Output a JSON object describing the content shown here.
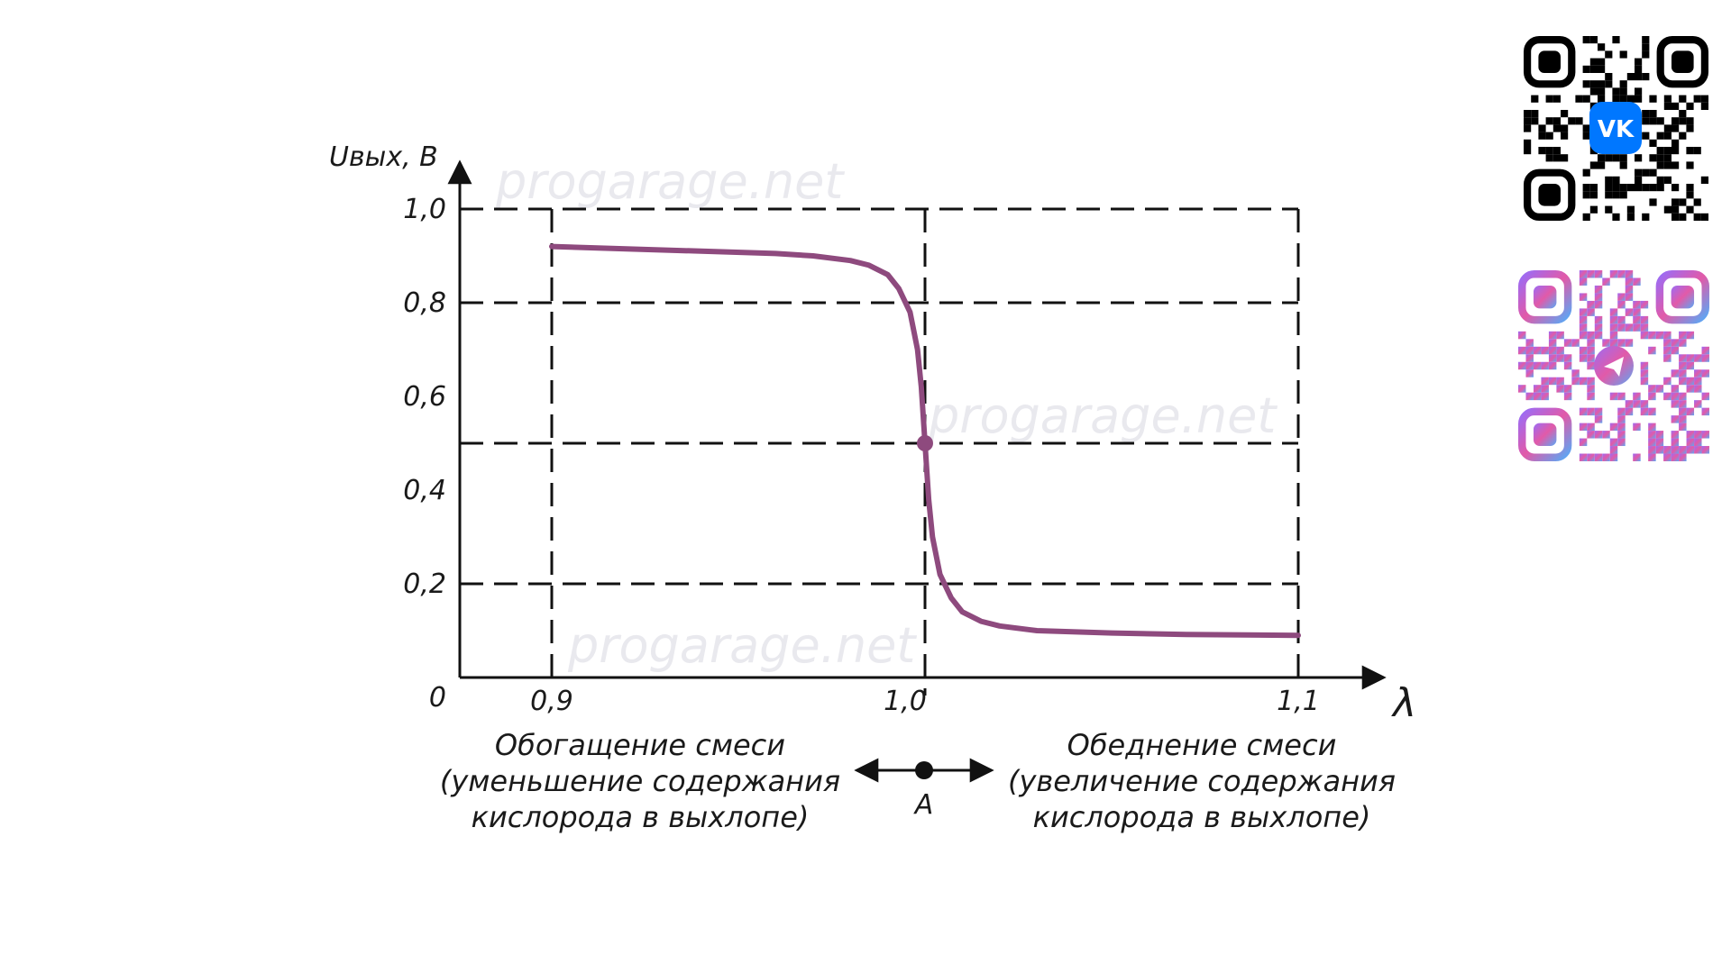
{
  "chart_data": {
    "type": "line",
    "ylabel": "Uвых, В",
    "xlabel": "λ",
    "xlim": [
      0.9,
      1.1
    ],
    "ylim": [
      0,
      1.0
    ],
    "x_ticks": [
      "0,9",
      "1,0",
      "1,1"
    ],
    "y_ticks": [
      "0",
      "0,2",
      "0,4",
      "0,6",
      "0,8",
      "1,0"
    ],
    "grid": "dashed",
    "series": [
      {
        "color": "#8e4a7e",
        "x": [
          0.9,
          0.92,
          0.94,
          0.96,
          0.97,
          0.98,
          0.985,
          0.99,
          0.993,
          0.996,
          0.998,
          0.999,
          1.0,
          1.001,
          1.002,
          1.004,
          1.007,
          1.01,
          1.015,
          1.02,
          1.03,
          1.05,
          1.07,
          1.1
        ],
        "y": [
          0.92,
          0.915,
          0.91,
          0.905,
          0.9,
          0.89,
          0.88,
          0.86,
          0.83,
          0.78,
          0.7,
          0.62,
          0.5,
          0.38,
          0.3,
          0.22,
          0.17,
          0.14,
          0.12,
          0.11,
          0.1,
          0.095,
          0.092,
          0.09
        ]
      }
    ],
    "marker": {
      "x": 1.0,
      "y": 0.5,
      "color": "#8e4a7e"
    },
    "point_label": "A",
    "annotations": {
      "left_title": "Обогащение смеси",
      "left_line1": "(уменьшение содержания",
      "left_line2": "кислорода в выхлопе)",
      "right_title": "Обеднение смеси",
      "right_line1": "(увеличение содержания",
      "right_line2": "кислорода в выхлопе)"
    },
    "watermarks": [
      "progarage.net",
      "progarage.net",
      "progarage.net"
    ]
  },
  "qr_codes": [
    {
      "icon": "vk-icon",
      "accent": "#0077ff"
    },
    {
      "icon": "telegram-icon",
      "gradient": [
        "#8b5cf6",
        "#ec4899",
        "#60a5fa"
      ]
    }
  ]
}
